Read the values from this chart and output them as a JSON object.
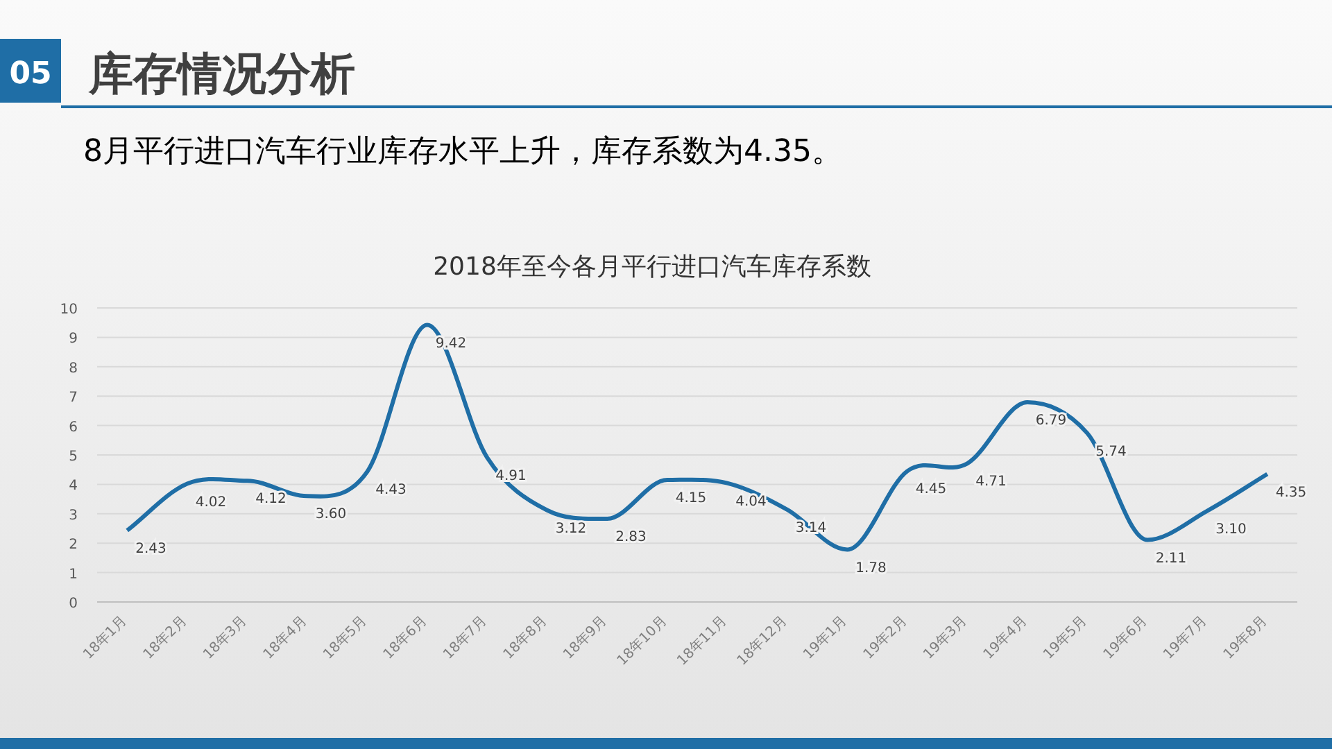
{
  "chart_data": {
    "type": "line",
    "title": "2018年至今各月平行进口汽车库存系数",
    "annotations": [
      "05",
      "库存情况分析",
      "8月平行进口汽车行业库存水平上升，库存系数为4.35。"
    ],
    "categories": [
      "18年1月",
      "18年2月",
      "18年3月",
      "18年4月",
      "18年5月",
      "18年6月",
      "18年7月",
      "18年8月",
      "18年9月",
      "18年10月",
      "18年11月",
      "18年12月",
      "19年1月",
      "19年2月",
      "19年3月",
      "19年4月",
      "19年5月",
      "19年6月",
      "19年7月",
      "19年8月"
    ],
    "series": [
      {
        "color": "#1f6ea6",
        "values": [
          2.43,
          4.02,
          4.12,
          3.6,
          4.43,
          9.42,
          4.91,
          3.12,
          2.83,
          4.15,
          4.04,
          3.14,
          1.78,
          4.45,
          4.71,
          6.79,
          5.74,
          2.11,
          3.1,
          4.35
        ]
      }
    ],
    "value_labels": [
      "2.43",
      "4.02",
      "4.12",
      "3.60",
      "4.43",
      "9.42",
      "4.91",
      "3.12",
      "2.83",
      "4.15",
      "4.04",
      "3.14",
      "1.78",
      "4.45",
      "4.71",
      "6.79",
      "5.74",
      "2.11",
      "3.10",
      "4.35"
    ],
    "ylim": [
      0,
      10
    ],
    "yticks": [
      0,
      1,
      2,
      3,
      4,
      5,
      6,
      7,
      8,
      9,
      10
    ],
    "grid": "y",
    "marker": "none",
    "line_style": "solid"
  }
}
